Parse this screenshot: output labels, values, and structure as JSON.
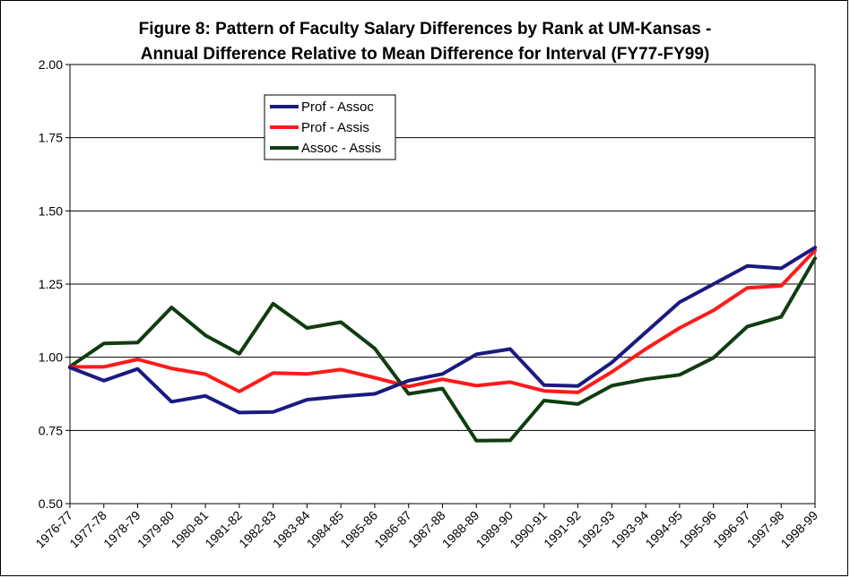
{
  "chart_data": {
    "type": "line",
    "title": "Figure 8: Pattern of Faculty Salary Differences by Rank at UM-Kansas -",
    "subtitle": "Annual Difference Relative to Mean Difference for Interval (FY77-FY99)",
    "xlabel": "",
    "ylabel": "",
    "ylim": [
      0.5,
      2.0
    ],
    "yticks": [
      "0.50",
      "0.75",
      "1.00",
      "1.25",
      "1.50",
      "1.75",
      "2.00"
    ],
    "grid": true,
    "legend_position": "top-left",
    "categories": [
      "1976-77",
      "1977-78",
      "1978-79",
      "1979-80",
      "1980-81",
      "1981-82",
      "1982-83",
      "1983-84",
      "1984-85",
      "1985-86",
      "1986-87",
      "1987-88",
      "1988-89",
      "1989-90",
      "1990-91",
      "1991-92",
      "1992-93",
      "1993-94",
      "1994-95",
      "1995-96",
      "1996-97",
      "1997-98",
      "1998-99"
    ],
    "series": [
      {
        "name": "Prof - Assoc",
        "color": "#1a1a80",
        "values": [
          0.965,
          0.92,
          0.96,
          0.848,
          0.868,
          0.811,
          0.813,
          0.855,
          0.866,
          0.875,
          0.92,
          0.943,
          1.01,
          1.028,
          0.905,
          0.902,
          0.982,
          1.085,
          1.188,
          1.25,
          1.312,
          1.304,
          1.375
        ]
      },
      {
        "name": "Prof - Assis",
        "color": "#ff1a1a",
        "values": [
          0.967,
          0.967,
          0.993,
          0.962,
          0.942,
          0.883,
          0.946,
          0.943,
          0.958,
          0.93,
          0.9,
          0.925,
          0.903,
          0.915,
          0.885,
          0.88,
          0.95,
          1.028,
          1.1,
          1.16,
          1.237,
          1.244,
          1.365
        ]
      },
      {
        "name": "Assoc - Assis",
        "color": "#0f3d0f",
        "values": [
          0.968,
          1.047,
          1.05,
          1.17,
          1.075,
          1.012,
          1.183,
          1.1,
          1.12,
          1.03,
          0.875,
          0.893,
          0.715,
          0.716,
          0.852,
          0.84,
          0.903,
          0.925,
          0.94,
          0.998,
          1.105,
          1.138,
          1.338
        ]
      }
    ]
  }
}
